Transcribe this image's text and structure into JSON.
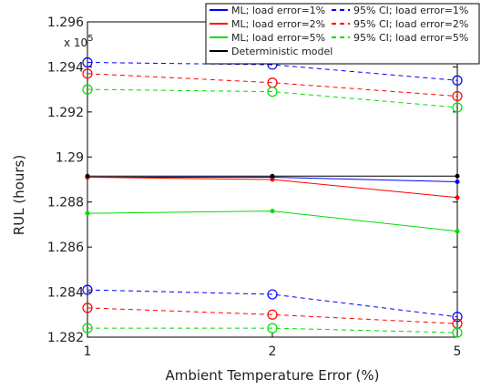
{
  "chart_data": {
    "type": "line",
    "xlabel": "Ambient Temperature Error (%)",
    "ylabel": "RUL (hours)",
    "y_multiplier": "x 10",
    "y_multiplier_exp": "5",
    "x": [
      1,
      2,
      5
    ],
    "x_tick_labels": [
      "1",
      "2",
      "5"
    ],
    "ylim": [
      1.282,
      1.296
    ],
    "y_ticks": [
      1.282,
      1.284,
      1.286,
      1.288,
      1.29,
      1.292,
      1.294,
      1.296
    ],
    "y_tick_labels": [
      "1.282",
      "1.284",
      "1.286",
      "1.288",
      "1.29",
      "1.292",
      "1.294",
      "1.296"
    ],
    "grid": false,
    "legend_position": "top-right",
    "series": [
      {
        "name": "ML; load error=1%",
        "color": "#0000ff",
        "dash": "solid",
        "marker": "dot",
        "values": [
          1.2891,
          1.2891,
          1.2889
        ]
      },
      {
        "name": "ML; load error=2%",
        "color": "#ff0000",
        "dash": "solid",
        "marker": "dot",
        "values": [
          1.2891,
          1.289,
          1.2882
        ]
      },
      {
        "name": "ML; load error=5%",
        "color": "#00dd00",
        "dash": "solid",
        "marker": "dot",
        "values": [
          1.2875,
          1.2876,
          1.2867
        ]
      },
      {
        "name": "95% CI; load error=1%",
        "color": "#0000ff",
        "dash": "dashed",
        "marker": "circle",
        "values": [
          1.2942,
          1.2941,
          1.2934
        ]
      },
      {
        "name": "95% CI; load error=2%",
        "color": "#ff0000",
        "dash": "dashed",
        "marker": "circle",
        "values": [
          1.2937,
          1.2933,
          1.2927
        ]
      },
      {
        "name": "95% CI; load error=5%",
        "color": "#00dd00",
        "dash": "dashed",
        "marker": "circle",
        "values": [
          1.293,
          1.2929,
          1.2922
        ]
      },
      {
        "name": "",
        "color": "#0000ff",
        "dash": "dashed",
        "marker": "circle",
        "values": [
          1.2841,
          1.2839,
          1.2829
        ]
      },
      {
        "name": "",
        "color": "#ff0000",
        "dash": "dashed",
        "marker": "circle",
        "values": [
          1.2833,
          1.283,
          1.2826
        ]
      },
      {
        "name": "",
        "color": "#00dd00",
        "dash": "dashed",
        "marker": "circle",
        "values": [
          1.2824,
          1.2824,
          1.2822
        ]
      },
      {
        "name": "Deterministic model",
        "color": "#000000",
        "dash": "solid",
        "marker": "dot",
        "values": [
          1.28915,
          1.28915,
          1.28915
        ]
      }
    ]
  }
}
